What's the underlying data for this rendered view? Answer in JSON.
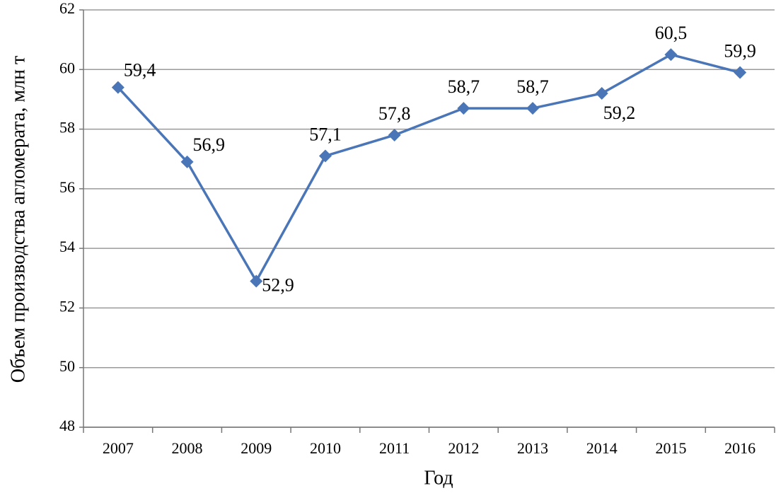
{
  "chart_data": {
    "type": "line",
    "y_label": "Объем производства агломерата, млн т",
    "x_label": "Год",
    "categories": [
      "2007",
      "2008",
      "2009",
      "2010",
      "2011",
      "2012",
      "2013",
      "2014",
      "2015",
      "2016"
    ],
    "values": [
      59.4,
      56.9,
      52.9,
      57.1,
      57.8,
      58.7,
      58.7,
      59.2,
      60.5,
      59.9
    ],
    "value_labels": [
      "59,4",
      "56,9",
      "52,9",
      "57,1",
      "57,8",
      "58,7",
      "58,7",
      "59,2",
      "60,5",
      "59,9"
    ],
    "color": "#4a76b8",
    "ylim": [
      48,
      62
    ],
    "yticks": [
      48,
      50,
      52,
      54,
      56,
      58,
      60,
      62
    ],
    "grid": true
  }
}
